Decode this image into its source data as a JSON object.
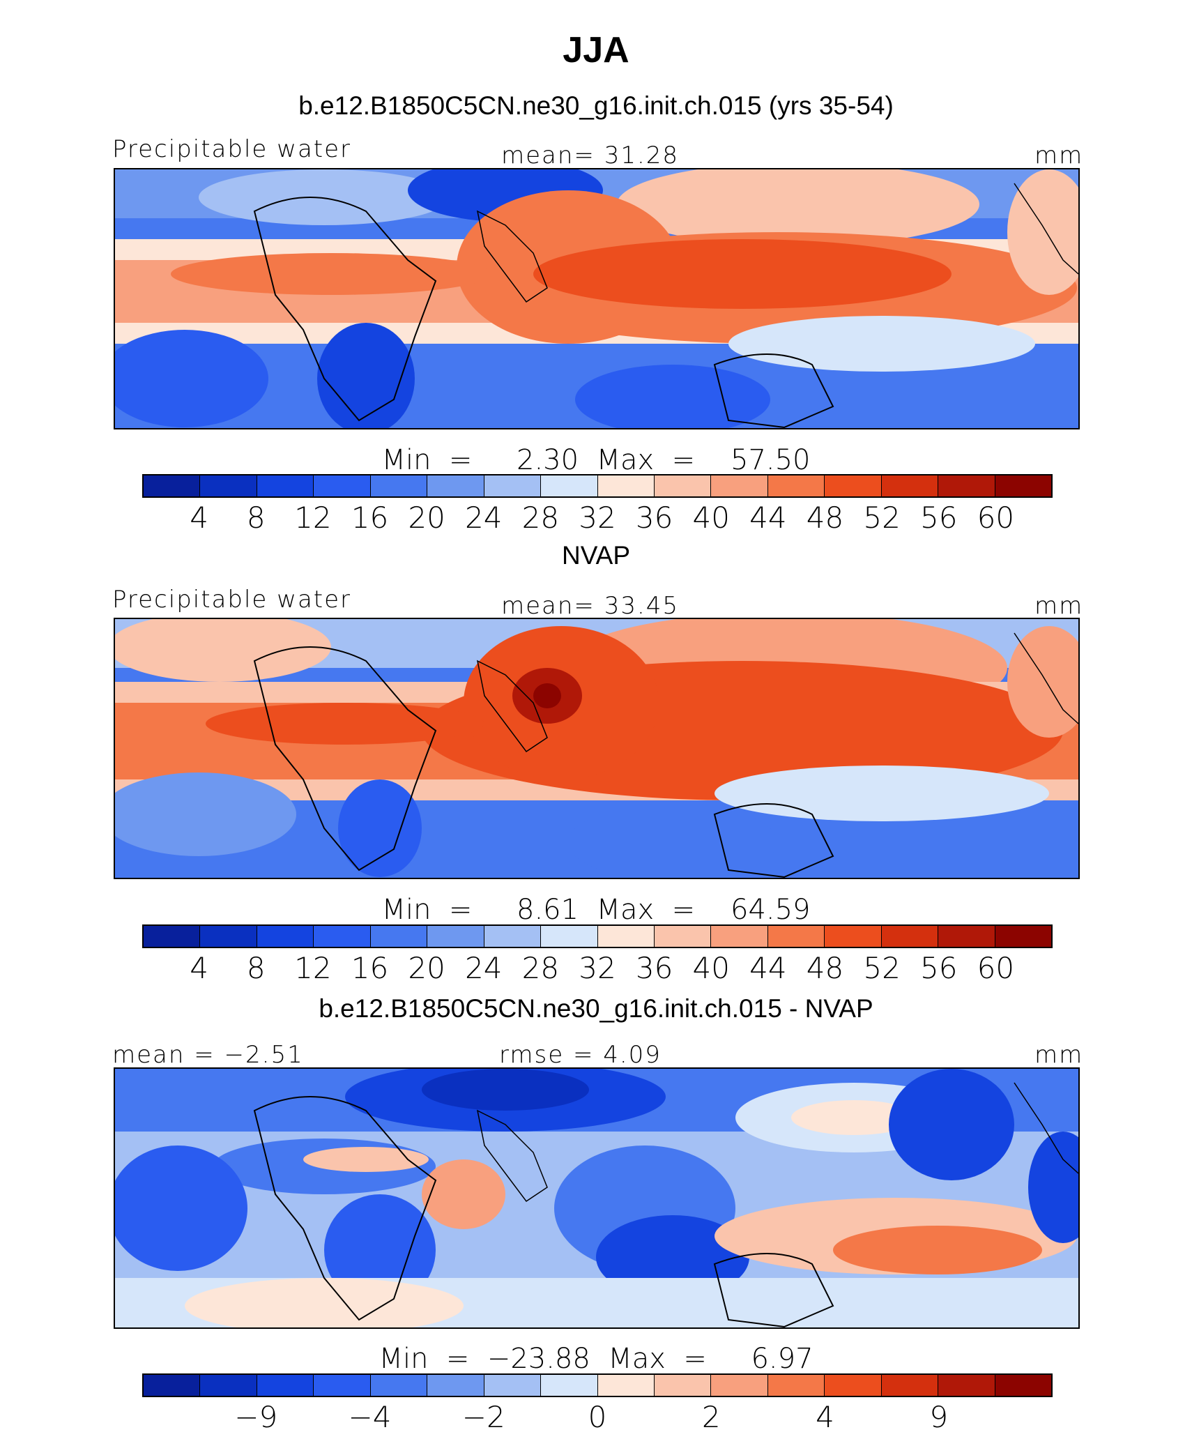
{
  "title": "JJA",
  "panels": [
    {
      "subtitle": "b.e12.B1850C5CN.ne30_g16.init.ch.015 (yrs 35-54)",
      "left_label": "Precipitable water",
      "center_label": "mean=   31.28",
      "right_label": "mm",
      "minmax": "Min  =     2.30  Max  =    57.50",
      "tick_labels": [
        "4",
        "8",
        "12",
        "16",
        "20",
        "24",
        "28",
        "32",
        "36",
        "40",
        "44",
        "48",
        "52",
        "56",
        "60"
      ],
      "colorbar_colors": [
        "#08209c",
        "#0a30c0",
        "#1444e0",
        "#2a5cf0",
        "#4678f0",
        "#6e98f0",
        "#a4c0f4",
        "#d6e6fa",
        "#fde6d8",
        "#fac4ac",
        "#f8a07e",
        "#f47848",
        "#ec4e1e",
        "#d4300e",
        "#b01808",
        "#8c0400"
      ]
    },
    {
      "subtitle": "NVAP",
      "left_label": "Precipitable water",
      "center_label": "mean=   33.45",
      "right_label": "mm",
      "minmax": "Min  =     8.61  Max  =    64.59",
      "tick_labels": [
        "4",
        "8",
        "12",
        "16",
        "20",
        "24",
        "28",
        "32",
        "36",
        "40",
        "44",
        "48",
        "52",
        "56",
        "60"
      ],
      "colorbar_colors": [
        "#08209c",
        "#0a30c0",
        "#1444e0",
        "#2a5cf0",
        "#4678f0",
        "#6e98f0",
        "#a4c0f4",
        "#d6e6fa",
        "#fde6d8",
        "#fac4ac",
        "#f8a07e",
        "#f47848",
        "#ec4e1e",
        "#d4300e",
        "#b01808",
        "#8c0400"
      ]
    },
    {
      "subtitle": "b.e12.B1850C5CN.ne30_g16.init.ch.015 - NVAP",
      "left_label": "mean  =   −2.51",
      "center_label": "rmse  =     4.09",
      "right_label": "mm",
      "minmax": "Min  =  −23.88  Max  =     6.97",
      "tick_labels": [
        "−9",
        "−4",
        "−2",
        "0",
        "2",
        "4",
        "9"
      ],
      "colorbar_colors": [
        "#08209c",
        "#0a30c0",
        "#1444e0",
        "#2a5cf0",
        "#4678f0",
        "#6e98f0",
        "#a4c0f4",
        "#d6e6fa",
        "#fde6d8",
        "#fac4ac",
        "#f8a07e",
        "#f47848",
        "#ec4e1e",
        "#d4300e",
        "#b01808",
        "#8c0400"
      ]
    }
  ]
}
